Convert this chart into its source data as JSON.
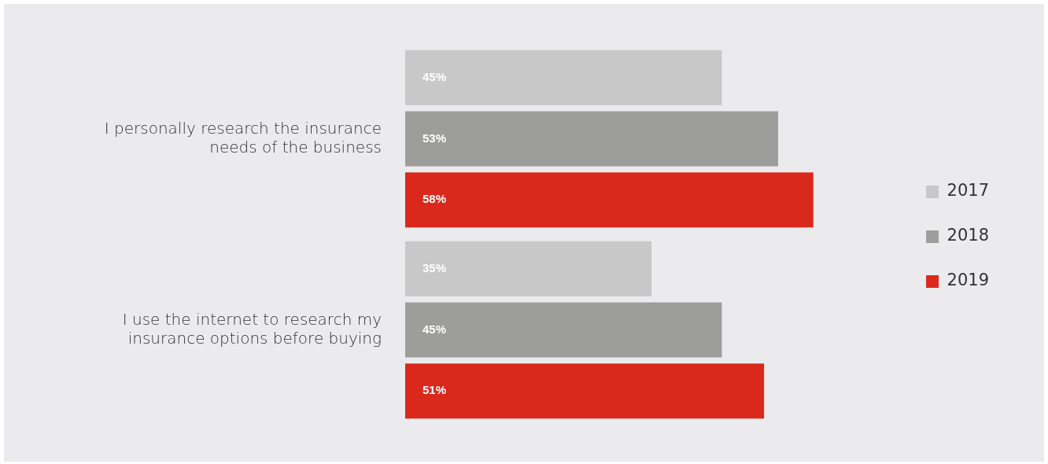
{
  "chart_data": {
    "type": "bar",
    "orientation": "horizontal",
    "categories": [
      "I personally research the insurance needs of the business",
      "I use the internet to research my insurance options before buying"
    ],
    "series": [
      {
        "name": "2017",
        "color": "#c8c8c8",
        "values": [
          45,
          35
        ],
        "value_labels": [
          "45%",
          "35%"
        ]
      },
      {
        "name": "2018",
        "color": "#9d9d9c",
        "values": [
          53,
          45
        ],
        "value_labels": [
          "53%",
          "45%"
        ]
      },
      {
        "name": "2019",
        "color": "#da291c",
        "values": [
          58,
          51
        ],
        "value_labels": [
          "58%",
          "51%"
        ]
      }
    ],
    "legend": "right",
    "tick_labels": "y"
  }
}
